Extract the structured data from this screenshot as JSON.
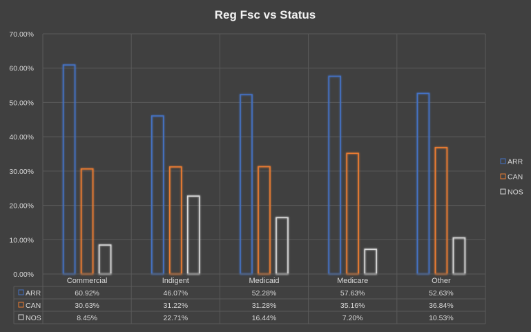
{
  "chart_data": {
    "type": "bar",
    "title": "Reg Fsc vs Status",
    "categories": [
      "Commercial",
      "Indigent",
      "Medicaid",
      "Medicare",
      "Other"
    ],
    "series": [
      {
        "name": "ARR",
        "color": "#4472c4",
        "values": [
          60.92,
          46.07,
          52.28,
          57.63,
          52.63
        ],
        "labels": [
          "60.92%",
          "46.07%",
          "52.28%",
          "57.63%",
          "52.63%"
        ]
      },
      {
        "name": "CAN",
        "color": "#ed7d31",
        "values": [
          30.63,
          31.22,
          31.28,
          35.16,
          36.84
        ],
        "labels": [
          "30.63%",
          "31.22%",
          "31.28%",
          "35.16%",
          "36.84%"
        ]
      },
      {
        "name": "NOS",
        "color": "#d9d9d9",
        "values": [
          8.45,
          22.71,
          16.44,
          7.2,
          10.53
        ],
        "labels": [
          "8.45%",
          "22.71%",
          "16.44%",
          "7.20%",
          "10.53%"
        ]
      }
    ],
    "yticks": [
      "0.00%",
      "10.00%",
      "20.00%",
      "30.00%",
      "40.00%",
      "50.00%",
      "60.00%",
      "70.00%"
    ],
    "ylim": [
      0,
      70
    ],
    "grid": true,
    "legend": "right",
    "data_table": true
  }
}
